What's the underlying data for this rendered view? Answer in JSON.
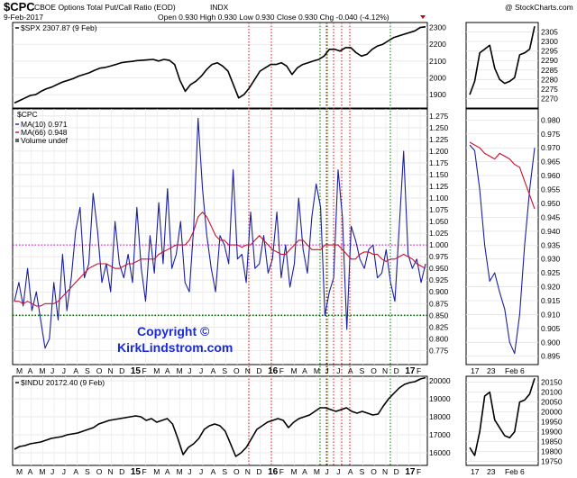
{
  "header": {
    "symbol": "$CPC",
    "name": "CBOE Options Total Put/Call Ratio (EOD)",
    "exchange": "INDX",
    "watermark": "@ StockCharts.com",
    "date": "9-Feb-2017",
    "quote": "Open 0.930  High 0.930  Low 0.930  Close 0.930  Chg -0.040 (-4.12%)"
  },
  "copyright": {
    "line1": "Copyright ©",
    "line2": "KirkLindstrom.com"
  },
  "legends": {
    "spx": "$SPX 2307.87 (9 Feb)",
    "cpc": "$CPC",
    "ma10": "MA(10) 0.971",
    "ma66": "MA(66) 0.948",
    "volume": "Volume undef",
    "indu": "$INDU 20172.40 (9 Feb)"
  },
  "colors": {
    "price": "#000000",
    "cpc": "#1c1f9e",
    "ma66": "#c8102e",
    "upper_ref": "#cc00cc",
    "lower_ref": "#006600",
    "red_vertical": "#dd2222",
    "green_vertical": "#118811"
  },
  "chart_data": [
    {
      "panel": "spx",
      "type": "line",
      "title": "$SPX 2307.87 (9 Feb)",
      "y_ticks": [
        1900,
        2000,
        2100,
        2200,
        2300
      ],
      "ylim": [
        1820,
        2330
      ],
      "series": [
        {
          "name": "$SPX",
          "values": [
            1850,
            1865,
            1880,
            1895,
            1900,
            1920,
            1935,
            1945,
            1960,
            1975,
            1985,
            1995,
            2010,
            2020,
            2030,
            2045,
            2058,
            2062,
            2070,
            2080,
            2090,
            2095,
            2098,
            2103,
            2105,
            2108,
            2110,
            2100,
            2110,
            2105,
            2080,
            1985,
            1920,
            1960,
            1980,
            2010,
            2050,
            2080,
            2090,
            2070,
            2040,
            1960,
            1880,
            1900,
            1940,
            1990,
            2040,
            2060,
            2080,
            2080,
            2090,
            2070,
            2020,
            2060,
            2080,
            2090,
            2100,
            2110,
            2130,
            2170,
            2170,
            2160,
            2180,
            2180,
            2150,
            2130,
            2140,
            2170,
            2190,
            2200,
            2220,
            2240,
            2250,
            2260,
            2270,
            2280,
            2300,
            2305
          ]
        }
      ]
    },
    {
      "panel": "spx_zoom",
      "type": "line",
      "y_ticks": [
        2270,
        2275,
        2280,
        2285,
        2290,
        2295,
        2300,
        2305
      ],
      "ylim": [
        2265,
        2310
      ],
      "series": [
        {
          "name": "$SPX",
          "values": [
            2272,
            2279,
            2294,
            2296,
            2298,
            2286,
            2280,
            2278,
            2279,
            2281,
            2293,
            2294,
            2296,
            2308
          ]
        }
      ]
    },
    {
      "panel": "cpc",
      "type": "line",
      "title": "$CPC",
      "y_ticks": [
        0.775,
        0.8,
        0.825,
        0.85,
        0.875,
        0.9,
        0.925,
        0.95,
        0.975,
        1.0,
        1.025,
        1.05,
        1.075,
        1.1,
        1.125,
        1.15,
        1.175,
        1.2,
        1.225,
        1.25,
        1.275
      ],
      "ylim": [
        0.745,
        1.29
      ],
      "reference_lines": [
        1.0,
        0.85
      ],
      "series": [
        {
          "name": "MA(10)",
          "values": [
            0.88,
            0.92,
            0.87,
            0.95,
            0.86,
            0.9,
            0.84,
            0.78,
            0.8,
            0.92,
            0.84,
            0.98,
            0.86,
            0.93,
            1.03,
            1.08,
            0.93,
            0.96,
            1.11,
            1.03,
            0.92,
            0.96,
            0.9,
            1.05,
            0.96,
            0.93,
            0.98,
            0.92,
            1.08,
            0.95,
            0.88,
            1.02,
            0.94,
            1.09,
            0.96,
            1.12,
            0.95,
            0.98,
            1.05,
            0.92,
            0.9,
            1.04,
            1.27,
            1.12,
            1.02,
            0.95,
            0.9,
            1.02,
            1.0,
            0.96,
            1.16,
            0.97,
            0.98,
            0.92,
            1.07,
            0.95,
            0.96,
            1.02,
            0.94,
            0.97,
            1.07,
            0.93,
            1.0,
            0.91,
            0.96,
            1.1,
            0.99,
            0.94,
            1.06,
            1.13,
            1.08,
            0.85,
            0.9,
            0.93,
            1.16,
            1.06,
            0.82,
            1.04,
            1.01,
            0.97,
            0.95,
            0.99,
            1.0,
            0.93,
            0.94,
            0.99,
            0.92,
            0.88,
            1.04,
            1.2,
            0.98,
            0.95,
            0.97,
            0.92,
            0.96
          ]
        },
        {
          "name": "MA(66)",
          "values": [
            0.88,
            0.88,
            0.875,
            0.88,
            0.875,
            0.87,
            0.87,
            0.875,
            0.875,
            0.875,
            0.88,
            0.89,
            0.9,
            0.91,
            0.92,
            0.93,
            0.94,
            0.95,
            0.955,
            0.96,
            0.96,
            0.96,
            0.955,
            0.95,
            0.95,
            0.955,
            0.96,
            0.96,
            0.965,
            0.97,
            0.97,
            0.97,
            0.97,
            0.98,
            0.985,
            0.99,
            0.995,
            1.0,
            1.0,
            1.0,
            1.01,
            1.03,
            1.06,
            1.07,
            1.06,
            1.04,
            1.02,
            1.01,
            1.01,
            1.0,
            1.0,
            1.0,
            0.995,
            1.0,
            1.0,
            1.01,
            1.02,
            1.01,
            1.0,
            0.99,
            0.985,
            0.98,
            0.98,
            0.99,
            1.0,
            1.01,
            1.01,
            1.0,
            0.99,
            0.99,
            0.99,
            1.0,
            1.0,
            1.0,
            1.0,
            0.99,
            0.98,
            0.97,
            0.97,
            0.98,
            0.985,
            0.985,
            0.98,
            0.98,
            0.97,
            0.965,
            0.97,
            0.97,
            0.975,
            0.98,
            0.975,
            0.97,
            0.96,
            0.955,
            0.95
          ]
        }
      ]
    },
    {
      "panel": "cpc_zoom",
      "type": "line",
      "y_ticks": [
        0.895,
        0.9,
        0.905,
        0.91,
        0.915,
        0.92,
        0.925,
        0.93,
        0.935,
        0.94,
        0.945,
        0.95,
        0.955,
        0.96,
        0.965,
        0.97,
        0.975,
        0.98
      ],
      "ylim": [
        0.892,
        0.984
      ],
      "series": [
        {
          "name": "MA(10)",
          "values": [
            0.971,
            0.969,
            0.955,
            0.935,
            0.922,
            0.925,
            0.918,
            0.912,
            0.9,
            0.896,
            0.91,
            0.935,
            0.955,
            0.97
          ]
        },
        {
          "name": "MA(66)",
          "values": [
            0.972,
            0.971,
            0.97,
            0.968,
            0.967,
            0.966,
            0.968,
            0.967,
            0.966,
            0.964,
            0.963,
            0.958,
            0.953,
            0.948
          ]
        }
      ]
    },
    {
      "panel": "indu",
      "type": "line",
      "title": "$INDU 20172.40 (9 Feb)",
      "y_ticks": [
        16000,
        17000,
        18000,
        19000,
        20000
      ],
      "ylim": [
        15300,
        20250
      ],
      "series": [
        {
          "name": "$INDU",
          "values": [
            16200,
            16350,
            16400,
            16500,
            16550,
            16600,
            16700,
            16800,
            16850,
            16900,
            17000,
            17050,
            17100,
            17200,
            17300,
            17400,
            17600,
            17700,
            17800,
            17850,
            17900,
            17950,
            18000,
            18050,
            18000,
            17800,
            17900,
            17700,
            17800,
            17900,
            17600,
            16800,
            15900,
            16300,
            16500,
            16800,
            17300,
            17500,
            17600,
            17500,
            17200,
            16500,
            15800,
            16000,
            16300,
            16800,
            17300,
            17500,
            17700,
            17800,
            17900,
            17800,
            17400,
            17700,
            17900,
            18000,
            18100,
            18300,
            18500,
            18500,
            18400,
            18300,
            18400,
            18500,
            18300,
            18200,
            18300,
            18200,
            18100,
            18150,
            18600,
            19000,
            19300,
            19600,
            19800,
            19900,
            19950,
            20100,
            20170
          ]
        }
      ]
    },
    {
      "panel": "indu_zoom",
      "type": "line",
      "y_ticks": [
        19750,
        19800,
        19850,
        19900,
        19950,
        20000,
        20050,
        20100,
        20150
      ],
      "ylim": [
        19730,
        20180
      ],
      "series": [
        {
          "name": "$INDU",
          "values": [
            19820,
            19780,
            19900,
            20080,
            20100,
            19960,
            19920,
            19880,
            19870,
            19900,
            20050,
            20060,
            20090,
            20170
          ]
        }
      ]
    },
    {
      "panel": "time_axis",
      "type": "line",
      "x_ticks": [
        "M",
        "A",
        "M",
        "J",
        "J",
        "A",
        "S",
        "O",
        "N",
        "D",
        "15",
        "F",
        "M",
        "A",
        "M",
        "J",
        "J",
        "A",
        "S",
        "O",
        "N",
        "D",
        "16",
        "F",
        "M",
        "A",
        "M",
        "J",
        "J",
        "A",
        "S",
        "O",
        "N",
        "D",
        "17",
        "F"
      ],
      "x_ticks_zoom": [
        "17",
        "23",
        "Feb",
        "6"
      ]
    }
  ]
}
